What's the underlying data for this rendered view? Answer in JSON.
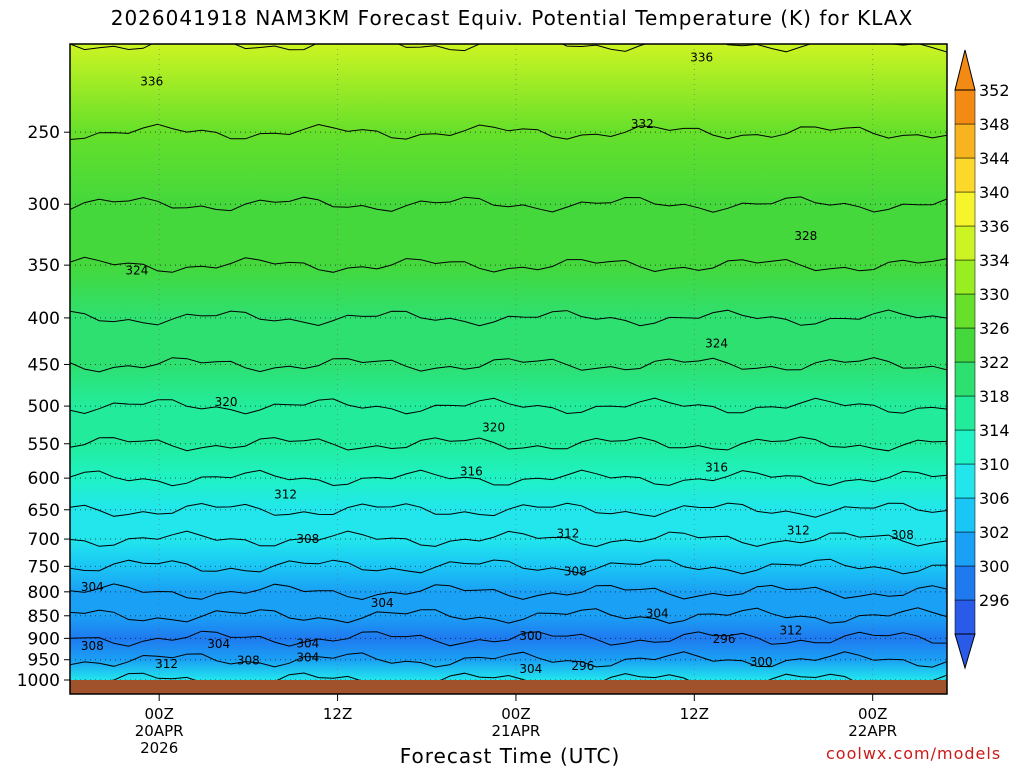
{
  "title": "2026041918 NAM3KM Forecast Equiv. Potential Temperature (K) for KLAX",
  "xlabel": "Forecast Time (UTC)",
  "credit": "coolwx.com/models",
  "chart_data": {
    "type": "heatmap",
    "title": "2026041918 NAM3KM Forecast Equiv. Potential Temperature (K) for KLAX",
    "xlabel": "Forecast Time (UTC)",
    "ylabel": "",
    "x_ticks": [
      {
        "hour": 6,
        "label": [
          "00Z",
          "20APR",
          "2026"
        ]
      },
      {
        "hour": 18,
        "label": [
          "12Z"
        ]
      },
      {
        "hour": 30,
        "label": [
          "00Z",
          "21APR"
        ]
      },
      {
        "hour": 42,
        "label": [
          "12Z"
        ]
      },
      {
        "hour": 54,
        "label": [
          "00Z",
          "22APR"
        ]
      }
    ],
    "xlim": [
      0,
      59
    ],
    "y_ticks": [
      250,
      300,
      350,
      400,
      450,
      500,
      550,
      600,
      650,
      700,
      750,
      800,
      850,
      900,
      950,
      1000
    ],
    "ylim": [
      1000,
      200
    ],
    "y_scale": "log-pressure",
    "grid": true,
    "colorbar_levels": [
      296,
      300,
      302,
      306,
      310,
      314,
      318,
      322,
      326,
      330,
      334,
      336,
      340,
      344,
      348,
      352
    ],
    "colorbar_colors": [
      "#2a5ae8",
      "#1f7af0",
      "#1aa0f5",
      "#1ac6f5",
      "#22e6ec",
      "#1ff2c4",
      "#22ec9c",
      "#2ee070",
      "#44d83c",
      "#66e02a",
      "#99ee22",
      "#ccf422",
      "#f6f42a",
      "#fbd82a",
      "#f8b41e",
      "#f28a14"
    ],
    "profile": [
      {
        "p": 200,
        "theta_e": 338
      },
      {
        "p": 250,
        "theta_e": 332
      },
      {
        "p": 300,
        "theta_e": 329
      },
      {
        "p": 350,
        "theta_e": 327
      },
      {
        "p": 400,
        "theta_e": 325
      },
      {
        "p": 450,
        "theta_e": 323
      },
      {
        "p": 500,
        "theta_e": 320
      },
      {
        "p": 550,
        "theta_e": 318
      },
      {
        "p": 600,
        "theta_e": 315
      },
      {
        "p": 650,
        "theta_e": 312
      },
      {
        "p": 700,
        "theta_e": 310
      },
      {
        "p": 750,
        "theta_e": 308
      },
      {
        "p": 800,
        "theta_e": 305
      },
      {
        "p": 850,
        "theta_e": 303
      },
      {
        "p": 900,
        "theta_e": 300
      },
      {
        "p": 950,
        "theta_e": 304
      },
      {
        "p": 1000,
        "theta_e": 310
      }
    ],
    "contour_labels": [
      {
        "value": "336",
        "hour": 42.5,
        "p": 207
      },
      {
        "value": "336",
        "hour": 5.5,
        "p": 220
      },
      {
        "value": "332",
        "hour": 38.5,
        "p": 245
      },
      {
        "value": "328",
        "hour": 49.5,
        "p": 325
      },
      {
        "value": "324",
        "hour": 4.5,
        "p": 355
      },
      {
        "value": "324",
        "hour": 43.5,
        "p": 427
      },
      {
        "value": "320",
        "hour": 10.5,
        "p": 495
      },
      {
        "value": "320",
        "hour": 28.5,
        "p": 528
      },
      {
        "value": "316",
        "hour": 27,
        "p": 590
      },
      {
        "value": "316",
        "hour": 43.5,
        "p": 584
      },
      {
        "value": "312",
        "hour": 14.5,
        "p": 625
      },
      {
        "value": "312",
        "hour": 33.5,
        "p": 690
      },
      {
        "value": "312",
        "hour": 49,
        "p": 685
      },
      {
        "value": "308",
        "hour": 16,
        "p": 700
      },
      {
        "value": "308",
        "hour": 34,
        "p": 760
      },
      {
        "value": "308",
        "hour": 56,
        "p": 693
      },
      {
        "value": "304",
        "hour": 1.5,
        "p": 790
      },
      {
        "value": "304",
        "hour": 21,
        "p": 823
      },
      {
        "value": "304",
        "hour": 39.5,
        "p": 845
      },
      {
        "value": "304",
        "hour": 10,
        "p": 913
      },
      {
        "value": "304",
        "hour": 16,
        "p": 912
      },
      {
        "value": "304",
        "hour": 16,
        "p": 945
      },
      {
        "value": "304",
        "hour": 31,
        "p": 972
      },
      {
        "value": "308",
        "hour": 1.5,
        "p": 918
      },
      {
        "value": "308",
        "hour": 12,
        "p": 952
      },
      {
        "value": "300",
        "hour": 31,
        "p": 895
      },
      {
        "value": "296",
        "hour": 44,
        "p": 902
      },
      {
        "value": "296",
        "hour": 34.5,
        "p": 965
      },
      {
        "value": "300",
        "hour": 46.5,
        "p": 956
      },
      {
        "value": "312",
        "hour": 6.5,
        "p": 960
      },
      {
        "value": "312",
        "hour": 48.5,
        "p": 882
      }
    ]
  }
}
